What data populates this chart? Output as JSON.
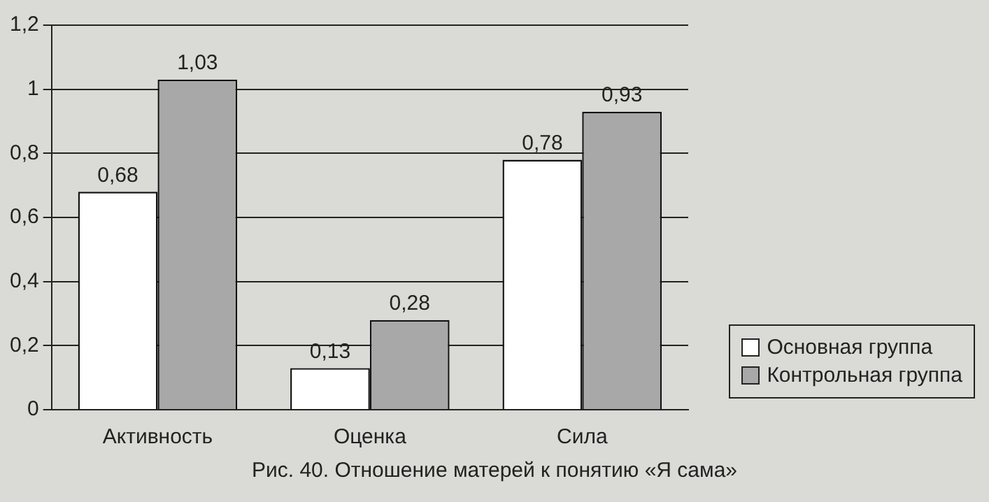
{
  "chart_data": {
    "type": "bar",
    "title": "Рис. 40. Отношение матерей к понятию «Я сама»",
    "categories": [
      "Активность",
      "Оценка",
      "Сила"
    ],
    "series": [
      {
        "name": "Основная группа",
        "color": "#ffffff",
        "values": [
          0.68,
          0.13,
          0.78
        ],
        "value_labels": [
          "0,68",
          "0,13",
          "0,78"
        ]
      },
      {
        "name": "Контрольная группа",
        "color": "#a8a8a8",
        "values": [
          1.03,
          0.28,
          0.93
        ],
        "value_labels": [
          "1,03",
          "0,28",
          "0,93"
        ]
      }
    ],
    "ylim": [
      0,
      1.2
    ],
    "yticks": [
      0,
      {
        "value": 0.2,
        "label": "0,2"
      },
      {
        "value": 0.4,
        "label": "0,4"
      },
      {
        "value": 0.6,
        "label": "0,6"
      },
      {
        "value": 0.8,
        "label": "0,8"
      },
      1,
      {
        "value": 1.2,
        "label": "1,2"
      }
    ],
    "grid": "y",
    "legend": "bottom right"
  }
}
